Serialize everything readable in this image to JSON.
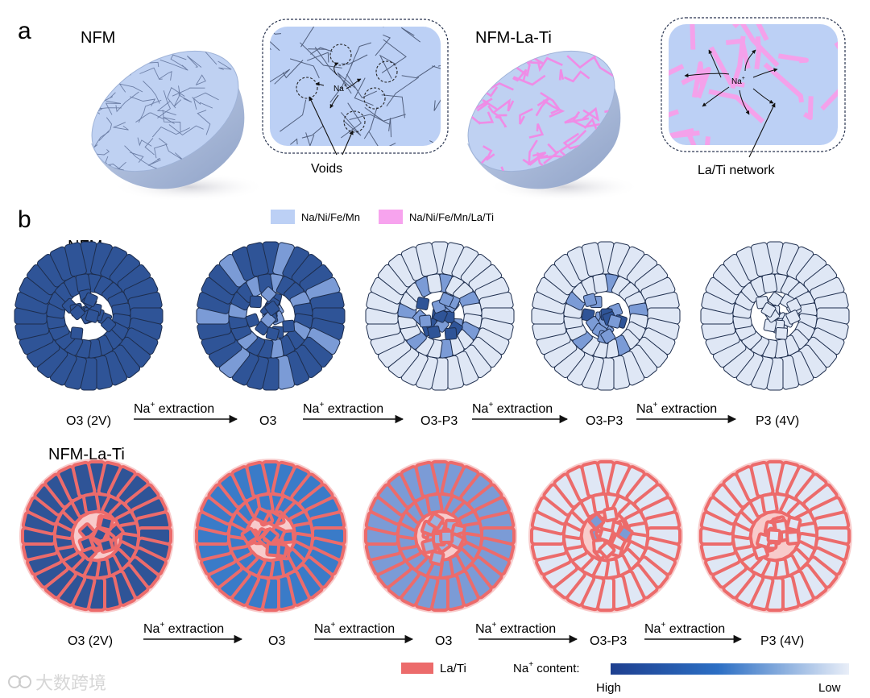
{
  "panel_a": {
    "label": "a",
    "left_title": "NFM",
    "right_title": "NFM-La-Ti",
    "left_inset_callout": "Voids",
    "right_inset_callout": "La/Ti network",
    "ion_label": "Na",
    "ion_charge": "+",
    "legend": [
      {
        "label": "Na/Ni/Fe/Mn",
        "color": "#bcd0f5"
      },
      {
        "label": "Na/Ni/Fe/Mn/La/Ti",
        "color": "#f7a3ee"
      }
    ]
  },
  "panel_b": {
    "label": "b",
    "rows": [
      {
        "title": "NFM",
        "stages": [
          "O3 (2V)",
          "O3",
          "O3-P3",
          "O3-P3",
          "P3 (4V)"
        ],
        "arrow_label": "Na",
        "arrow_label_sup": "+",
        "arrow_label_suffix": " extraction"
      },
      {
        "title": "NFM-La-Ti",
        "stages": [
          "O3 (2V)",
          "O3",
          "O3",
          "O3-P3",
          "P3 (4V)"
        ],
        "arrow_label": "Na",
        "arrow_label_sup": "+",
        "arrow_label_suffix": " extraction"
      }
    ],
    "legend_la_ti": {
      "label": "La/Ti",
      "color": "#ec6b6b"
    },
    "na_content": {
      "label_prefix": "Na",
      "label_sup": "+",
      "label_suffix": " content:",
      "high": "High",
      "low": "Low",
      "color_high": "#1e3f8f",
      "color_mid": "#2c6fc4",
      "color_low": "#e9eef8"
    },
    "colors": {
      "dark": "#2f5497",
      "medium": "#7b9bd6",
      "light": "#dfe7f5",
      "outline": "#1d2d4d",
      "la_ti": "#ec6b6b",
      "blue_mid": "#3a7bc8"
    }
  },
  "watermark": "大数跨境"
}
